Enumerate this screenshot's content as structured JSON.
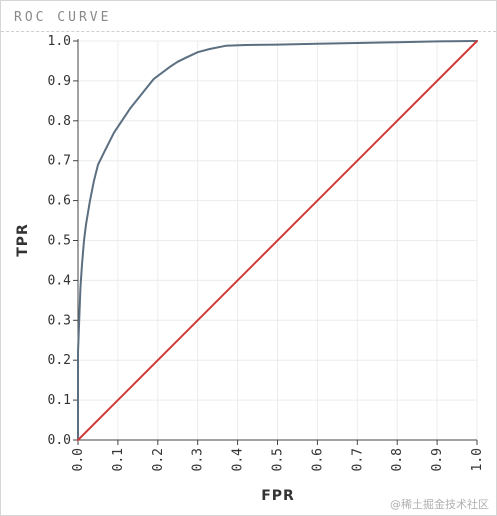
{
  "chart_header": {
    "title": "ROC CURVE"
  },
  "watermark": "@稀土掘金技术社区",
  "chart_data": {
    "type": "line",
    "title": "ROC CURVE",
    "xlabel": "FPR",
    "ylabel": "TPR",
    "xlim": [
      0,
      1
    ],
    "ylim": [
      0,
      1
    ],
    "grid": true,
    "xticks": [
      "0.0",
      "0.1",
      "0.2",
      "0.3",
      "0.4",
      "0.5",
      "0.6",
      "0.7",
      "0.8",
      "0.9",
      "1.0"
    ],
    "yticks": [
      "0.0",
      "0.1",
      "0.2",
      "0.3",
      "0.4",
      "0.5",
      "0.6",
      "0.7",
      "0.8",
      "0.9",
      "1.0"
    ],
    "series": [
      {
        "color": "#5b6f80",
        "x": [
          0.0,
          0.0,
          0.003,
          0.006,
          0.01,
          0.015,
          0.02,
          0.03,
          0.04,
          0.05,
          0.07,
          0.09,
          0.11,
          0.13,
          0.15,
          0.17,
          0.19,
          0.21,
          0.23,
          0.25,
          0.27,
          0.3,
          0.33,
          0.37,
          0.42,
          0.5,
          0.6,
          0.7,
          0.8,
          0.9,
          1.0
        ],
        "y": [
          0.0,
          0.22,
          0.3,
          0.38,
          0.44,
          0.5,
          0.54,
          0.6,
          0.65,
          0.69,
          0.73,
          0.77,
          0.8,
          0.83,
          0.855,
          0.88,
          0.905,
          0.92,
          0.935,
          0.948,
          0.958,
          0.972,
          0.98,
          0.988,
          0.99,
          0.991,
          0.993,
          0.995,
          0.997,
          0.999,
          1.0
        ]
      },
      {
        "color": "#d13a3a",
        "x": [
          0,
          1
        ],
        "y": [
          0,
          1
        ]
      }
    ]
  }
}
